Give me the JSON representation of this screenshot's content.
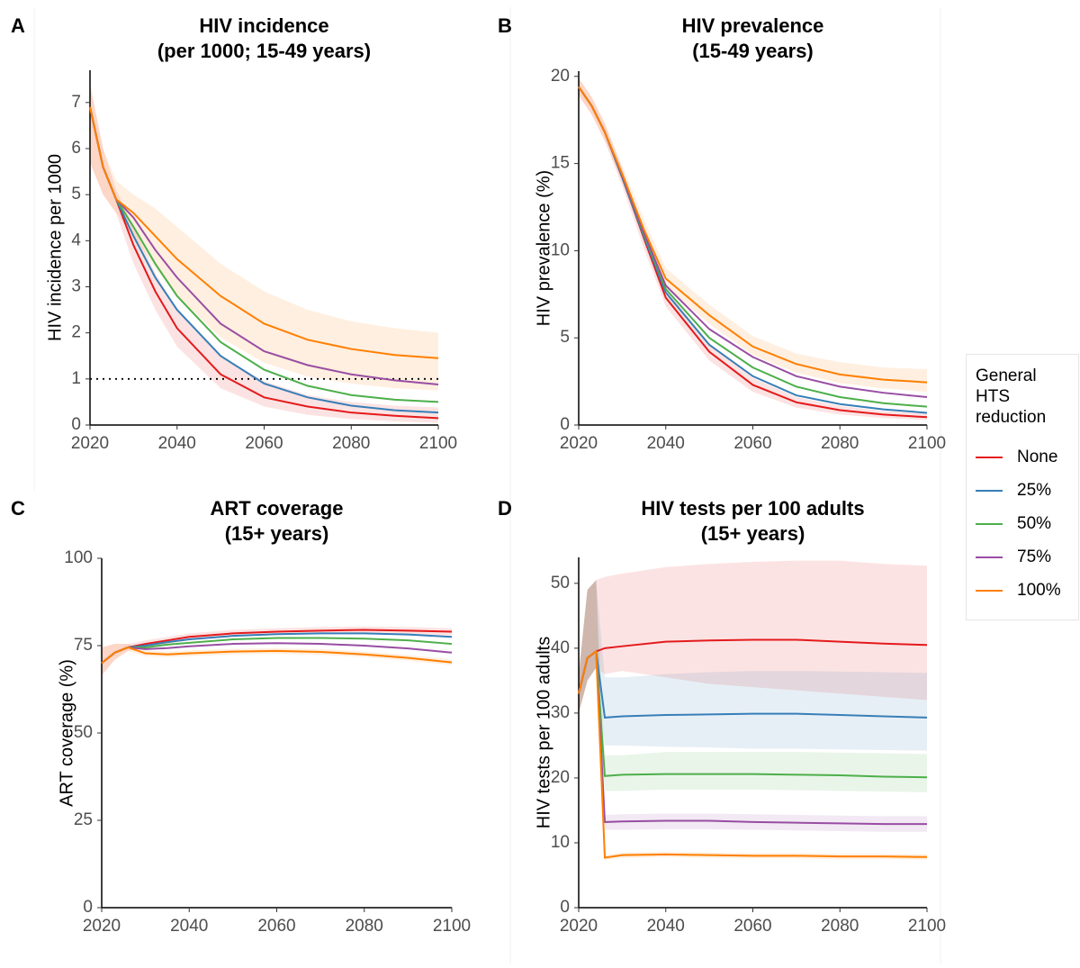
{
  "chart_data": [
    {
      "type": "line",
      "panel": "A",
      "title": "HIV incidence",
      "subtitle": "(per 1000; 15-49 years)",
      "y_label": "HIV incidence per 1000",
      "x": [
        2020,
        2023,
        2026,
        2030,
        2035,
        2040,
        2050,
        2060,
        2070,
        2080,
        2090,
        2100
      ],
      "xlim": [
        2020,
        2100
      ],
      "xticks": [
        2020,
        2040,
        2060,
        2080,
        2100
      ],
      "ylim": [
        0,
        7.7
      ],
      "yticks": [
        0,
        1,
        2,
        3,
        4,
        5,
        6,
        7
      ],
      "hline": 1,
      "series": [
        {
          "name": "None",
          "color": "#e41a1c",
          "values": [
            6.9,
            5.6,
            4.9,
            3.9,
            2.9,
            2.1,
            1.1,
            0.6,
            0.4,
            0.27,
            0.2,
            0.15
          ],
          "lower": [
            5.7,
            5.0,
            4.6,
            3.5,
            2.5,
            1.7,
            0.8,
            0.4,
            0.22,
            0.13,
            0.08,
            0.05
          ],
          "upper": [
            7.4,
            6.0,
            5.1,
            4.3,
            3.3,
            2.5,
            1.5,
            0.95,
            0.65,
            0.5,
            0.42,
            0.38
          ]
        },
        {
          "name": "25%",
          "color": "#377eb8",
          "values": [
            6.9,
            5.6,
            4.9,
            4.1,
            3.2,
            2.5,
            1.5,
            0.9,
            0.6,
            0.42,
            0.32,
            0.27
          ]
        },
        {
          "name": "50%",
          "color": "#4daf4a",
          "values": [
            6.9,
            5.6,
            4.9,
            4.3,
            3.5,
            2.8,
            1.8,
            1.2,
            0.85,
            0.65,
            0.55,
            0.5
          ]
        },
        {
          "name": "75%",
          "color": "#984ea3",
          "values": [
            6.9,
            5.6,
            4.9,
            4.5,
            3.8,
            3.2,
            2.2,
            1.6,
            1.3,
            1.1,
            0.97,
            0.88
          ]
        },
        {
          "name": "100%",
          "color": "#ff7f00",
          "values": [
            6.9,
            5.6,
            4.9,
            4.6,
            4.1,
            3.6,
            2.8,
            2.2,
            1.85,
            1.65,
            1.52,
            1.45
          ],
          "lower": [
            5.7,
            5.0,
            4.6,
            4.1,
            3.4,
            2.8,
            1.9,
            1.35,
            1.05,
            0.9,
            0.8,
            0.75
          ],
          "upper": [
            7.4,
            6.0,
            5.3,
            5.0,
            4.7,
            4.3,
            3.5,
            2.9,
            2.5,
            2.25,
            2.1,
            2.0
          ]
        }
      ]
    },
    {
      "type": "line",
      "panel": "B",
      "title": "HIV prevalence",
      "subtitle": "(15-49 years)",
      "y_label": "HIV prevalence (%)",
      "x": [
        2020,
        2023,
        2026,
        2030,
        2035,
        2040,
        2050,
        2060,
        2070,
        2080,
        2090,
        2100
      ],
      "xlim": [
        2020,
        2100
      ],
      "xticks": [
        2020,
        2040,
        2060,
        2080,
        2100
      ],
      "ylim": [
        0,
        20.3
      ],
      "yticks": [
        0,
        5,
        10,
        15,
        20
      ],
      "series": [
        {
          "color": "#e41a1c",
          "values": [
            19.4,
            18.3,
            16.8,
            14.2,
            10.7,
            7.3,
            4.2,
            2.3,
            1.3,
            0.85,
            0.6,
            0.45
          ],
          "lower": [
            18.9,
            17.8,
            16.3,
            13.7,
            10.1,
            6.8,
            3.7,
            1.9,
            1.0,
            0.6,
            0.4,
            0.3
          ],
          "upper": [
            19.9,
            18.8,
            17.3,
            14.7,
            11.2,
            7.8,
            4.7,
            2.7,
            1.6,
            1.1,
            0.8,
            0.65
          ]
        },
        {
          "color": "#377eb8",
          "values": [
            19.4,
            18.3,
            16.8,
            14.2,
            10.8,
            7.6,
            4.6,
            2.8,
            1.7,
            1.2,
            0.9,
            0.7
          ]
        },
        {
          "color": "#4daf4a",
          "values": [
            19.4,
            18.3,
            16.8,
            14.3,
            10.9,
            7.8,
            5.0,
            3.3,
            2.2,
            1.6,
            1.25,
            1.05
          ]
        },
        {
          "color": "#984ea3",
          "values": [
            19.4,
            18.3,
            16.8,
            14.3,
            11.0,
            8.0,
            5.5,
            3.9,
            2.8,
            2.2,
            1.85,
            1.6
          ]
        },
        {
          "color": "#ff7f00",
          "values": [
            19.4,
            18.3,
            16.8,
            14.4,
            11.2,
            8.4,
            6.3,
            4.5,
            3.5,
            2.9,
            2.6,
            2.45
          ],
          "lower": [
            18.9,
            17.8,
            16.3,
            13.9,
            10.7,
            7.9,
            5.8,
            4.0,
            3.0,
            2.4,
            2.1,
            1.9
          ],
          "upper": [
            19.9,
            18.8,
            17.3,
            14.9,
            11.8,
            9.0,
            6.9,
            5.1,
            4.1,
            3.6,
            3.3,
            3.2
          ]
        }
      ]
    },
    {
      "type": "line",
      "panel": "C",
      "title": "ART coverage",
      "subtitle": "(15+ years)",
      "y_label": "ART coverage (%)",
      "x": [
        2020,
        2023,
        2026,
        2030,
        2035,
        2040,
        2050,
        2060,
        2070,
        2080,
        2090,
        2100
      ],
      "xlim": [
        2020,
        2100
      ],
      "xticks": [
        2020,
        2040,
        2060,
        2080,
        2100
      ],
      "ylim": [
        0,
        100
      ],
      "yticks": [
        0,
        25,
        50,
        75,
        100
      ],
      "series": [
        {
          "color": "#e41a1c",
          "values": [
            70,
            73,
            74.5,
            75.5,
            76.5,
            77.5,
            78.5,
            79,
            79.3,
            79.5,
            79.3,
            79
          ],
          "lower": [
            66.5,
            71,
            73.5,
            74.5,
            75.5,
            76.5,
            77.5,
            78,
            78.3,
            78.5,
            78.3,
            78
          ],
          "upper": [
            74.5,
            75.5,
            75.5,
            76.5,
            77.5,
            78.5,
            79.5,
            80,
            80.3,
            80.5,
            80.3,
            80
          ]
        },
        {
          "color": "#377eb8",
          "values": [
            70,
            73,
            74.5,
            75,
            76,
            76.8,
            77.8,
            78.3,
            78.5,
            78.5,
            78.2,
            77.5
          ]
        },
        {
          "color": "#4daf4a",
          "values": [
            70,
            73,
            74.5,
            74.5,
            75.3,
            75.8,
            76.8,
            77.2,
            77.2,
            77,
            76.5,
            75.5
          ]
        },
        {
          "color": "#984ea3",
          "values": [
            70,
            73,
            74.5,
            74,
            74.3,
            74.8,
            75.5,
            75.7,
            75.5,
            75,
            74.2,
            73
          ]
        },
        {
          "color": "#ff7f00",
          "values": [
            70,
            73,
            74.5,
            72.8,
            72.5,
            72.8,
            73.3,
            73.5,
            73.2,
            72.5,
            71.5,
            70.2
          ],
          "lower": [
            66.5,
            71,
            73.5,
            72,
            71.7,
            72,
            72.5,
            72.7,
            72.4,
            71.7,
            70.7,
            69.4
          ],
          "upper": [
            74.5,
            75.5,
            75.5,
            73.6,
            73.3,
            73.6,
            74.1,
            74.3,
            74,
            73.3,
            72.3,
            71
          ]
        }
      ]
    },
    {
      "type": "line",
      "panel": "D",
      "title": "HIV tests per 100 adults",
      "subtitle": "(15+ years)",
      "y_label": "HIV tests per 100 adults",
      "x": [
        2020,
        2022,
        2024,
        2026,
        2030,
        2040,
        2050,
        2060,
        2070,
        2080,
        2090,
        2100
      ],
      "xlim": [
        2020,
        2100
      ],
      "xticks": [
        2020,
        2040,
        2060,
        2080,
        2100
      ],
      "ylim": [
        0,
        54
      ],
      "yticks": [
        0,
        10,
        20,
        30,
        40,
        50
      ],
      "series": [
        {
          "color": "#e41a1c",
          "values": [
            33,
            38.5,
            39.5,
            40,
            40.3,
            41,
            41.2,
            41.3,
            41.3,
            41,
            40.7,
            40.5
          ],
          "lower": [
            30,
            35,
            37,
            36,
            36.5,
            35.5,
            34.5,
            34,
            33.5,
            33,
            32.5,
            32
          ],
          "upper": [
            36,
            49,
            50.5,
            51,
            51.5,
            52.5,
            53,
            53.3,
            53.5,
            53.5,
            53,
            52.7
          ]
        },
        {
          "color": "#377eb8",
          "values": [
            33,
            38.5,
            39.5,
            29.3,
            29.5,
            29.7,
            29.8,
            29.9,
            29.9,
            29.7,
            29.5,
            29.3
          ],
          "lower": [
            30,
            35,
            37,
            25,
            25,
            24.8,
            24.7,
            24.5,
            24.5,
            24.4,
            24.3,
            24.2
          ],
          "upper": [
            36,
            49,
            50.5,
            35.5,
            35.5,
            36,
            36.3,
            36.5,
            36.5,
            36.4,
            36.3,
            36.2
          ]
        },
        {
          "color": "#4daf4a",
          "values": [
            33,
            38.5,
            39.5,
            20.3,
            20.5,
            20.6,
            20.6,
            20.6,
            20.5,
            20.4,
            20.2,
            20.1
          ],
          "lower": [
            30,
            35,
            37,
            18,
            18,
            18.2,
            18.2,
            18.2,
            18.1,
            18,
            17.9,
            17.8
          ],
          "upper": [
            36,
            49,
            50.5,
            23.5,
            23.5,
            24,
            24,
            24,
            24,
            23.9,
            23.8,
            23.7
          ]
        },
        {
          "color": "#984ea3",
          "values": [
            33,
            38.5,
            39.5,
            13.2,
            13.3,
            13.4,
            13.4,
            13.2,
            13.1,
            13.0,
            12.9,
            12.9
          ],
          "lower": [
            30,
            35,
            37,
            12,
            12,
            12.1,
            12.1,
            12,
            11.9,
            11.8,
            11.7,
            11.7
          ],
          "upper": [
            36,
            49,
            50.5,
            14.3,
            14.4,
            14.5,
            14.5,
            14.4,
            14.3,
            14.2,
            14.1,
            14.1
          ]
        },
        {
          "color": "#ff7f00",
          "values": [
            33,
            38.5,
            39.5,
            7.7,
            8.1,
            8.2,
            8.1,
            8.0,
            8.0,
            7.9,
            7.9,
            7.8
          ],
          "lower": [
            30,
            35,
            37,
            7.4,
            7.7,
            7.8,
            7.7,
            7.6,
            7.6,
            7.5,
            7.5,
            7.4
          ],
          "upper": [
            36,
            49,
            50.5,
            8.1,
            8.5,
            8.6,
            8.5,
            8.4,
            8.4,
            8.3,
            8.3,
            8.2
          ]
        }
      ]
    }
  ],
  "legend": {
    "title": "General HTS reduction"
  }
}
